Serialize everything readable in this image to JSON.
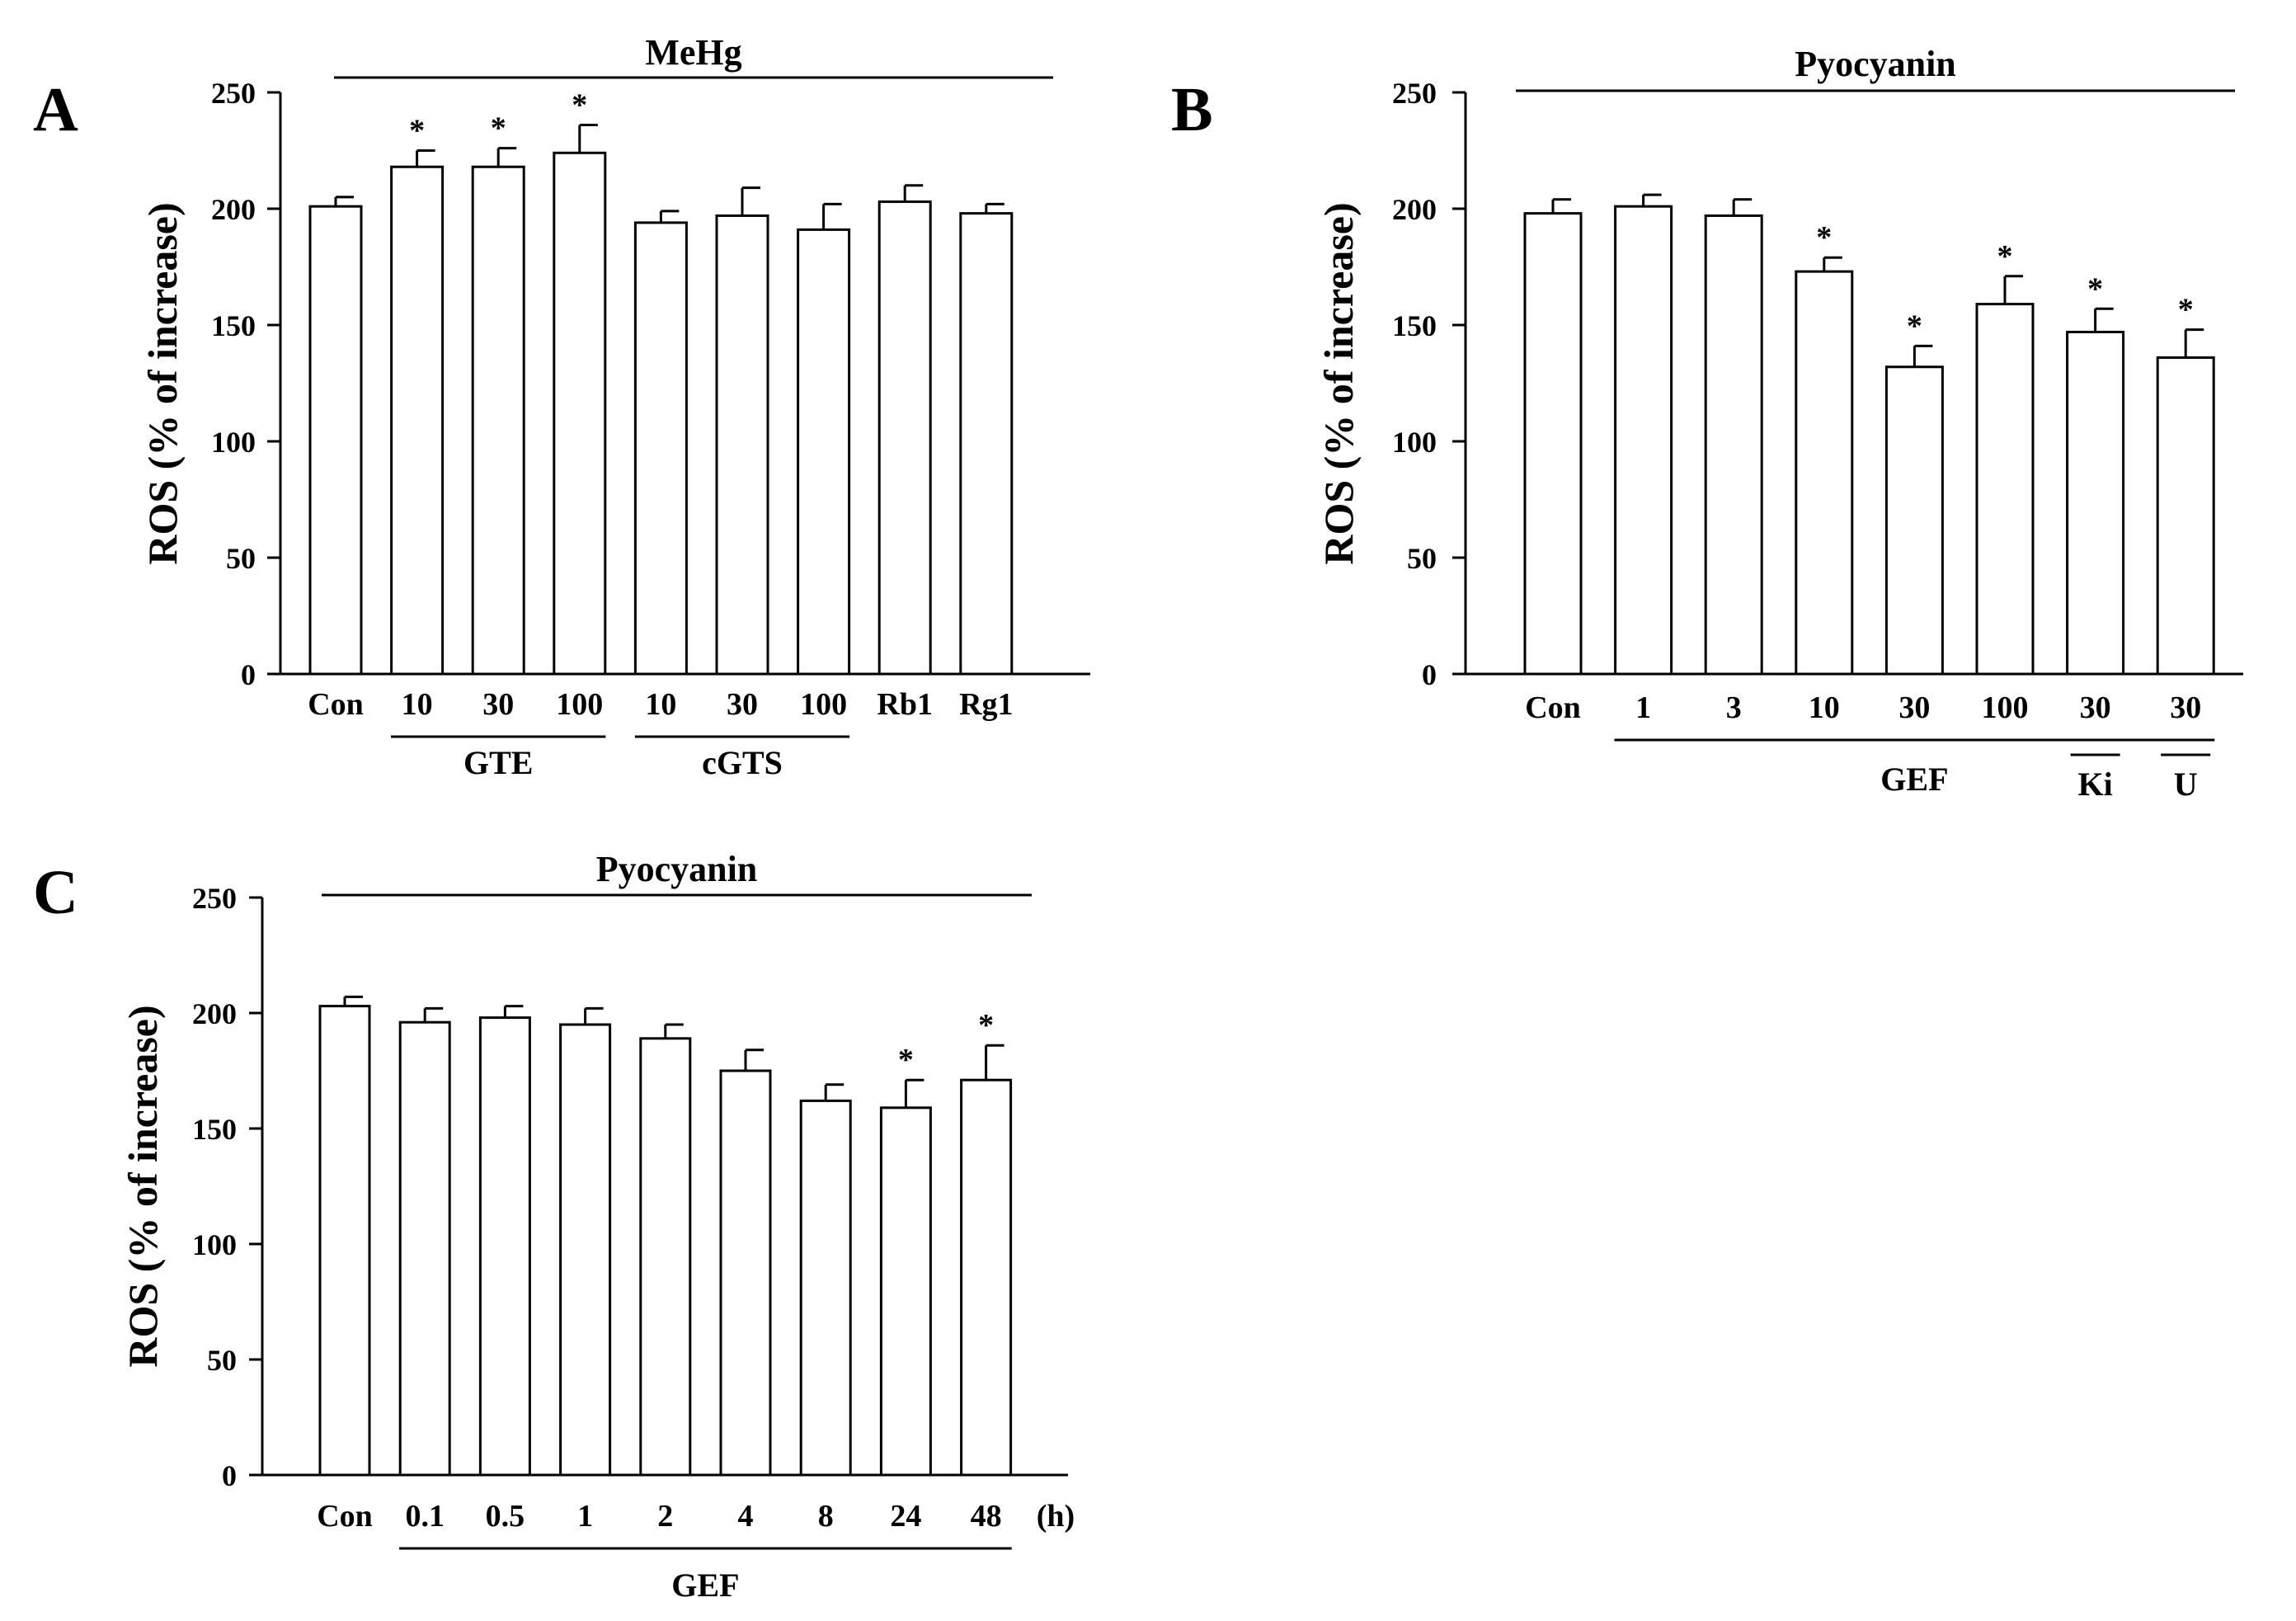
{
  "chart_data": [
    {
      "panel": "A",
      "type": "bar",
      "title": "MeHg",
      "ylabel": "ROS (% of increase)",
      "ylim": [
        0,
        250
      ],
      "yticks": [
        0,
        50,
        100,
        150,
        200,
        250
      ],
      "categories": [
        "Con",
        "10",
        "30",
        "100",
        "10",
        "30",
        "100",
        "Rb1",
        "Rg1"
      ],
      "values": [
        201,
        218,
        218,
        224,
        194,
        197,
        191,
        203,
        198
      ],
      "errors": [
        4,
        7,
        8,
        12,
        5,
        12,
        11,
        7,
        4
      ],
      "significant": [
        false,
        true,
        true,
        true,
        false,
        false,
        false,
        false,
        false
      ],
      "groups": [
        {
          "label": "GTE",
          "from": 1,
          "to": 3
        },
        {
          "label": "cGTS",
          "from": 4,
          "to": 6
        }
      ]
    },
    {
      "panel": "B",
      "type": "bar",
      "title": "Pyocyanin",
      "ylabel": "ROS (% of increase)",
      "ylim": [
        0,
        250
      ],
      "yticks": [
        0,
        50,
        100,
        150,
        200,
        250
      ],
      "categories": [
        "Con",
        "1",
        "3",
        "10",
        "30",
        "100",
        "30",
        "30"
      ],
      "values": [
        198,
        201,
        197,
        173,
        132,
        159,
        147,
        136
      ],
      "errors": [
        6,
        5,
        7,
        6,
        9,
        12,
        10,
        12
      ],
      "significant": [
        false,
        false,
        false,
        true,
        true,
        true,
        true,
        true
      ],
      "groups": [
        {
          "label": "GEF",
          "from": 1,
          "to": 7
        }
      ],
      "subgroups": [
        {
          "label": "Ki",
          "index": 6
        },
        {
          "label": "U",
          "index": 7
        }
      ]
    },
    {
      "panel": "C",
      "type": "bar",
      "title": "Pyocyanin",
      "ylabel": "ROS (% of increase)",
      "ylim": [
        0,
        250
      ],
      "yticks": [
        0,
        50,
        100,
        150,
        200,
        250
      ],
      "categories": [
        "Con",
        "0.1",
        "0.5",
        "1",
        "2",
        "4",
        "8",
        "24",
        "48"
      ],
      "unit_label": "(h)",
      "values": [
        203,
        196,
        198,
        195,
        189,
        175,
        162,
        159,
        171
      ],
      "errors": [
        4,
        6,
        5,
        7,
        6,
        9,
        7,
        12,
        15
      ],
      "significant": [
        false,
        false,
        false,
        false,
        false,
        false,
        false,
        true,
        true
      ],
      "groups": [
        {
          "label": "GEF",
          "from": 1,
          "to": 8
        }
      ]
    }
  ]
}
